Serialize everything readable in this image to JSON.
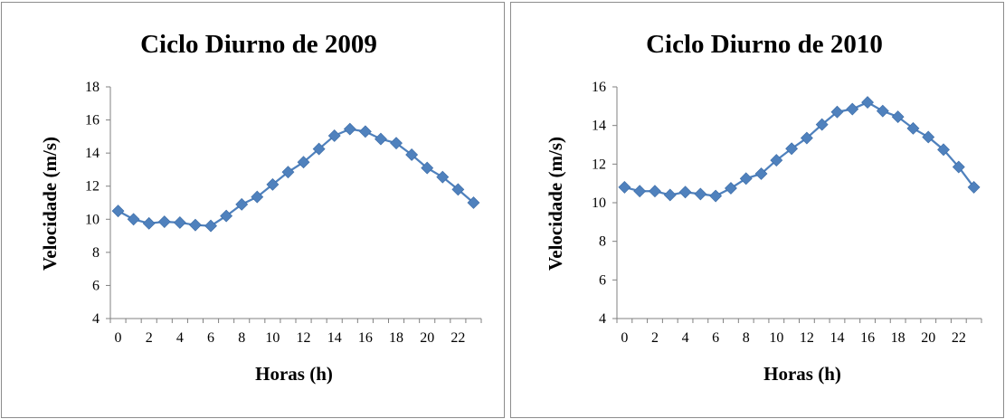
{
  "chart_data": [
    {
      "type": "line",
      "title": "Ciclo Diurno de 2009",
      "xlabel": "Horas (h)",
      "ylabel": "Velocidade (m/s)",
      "x": [
        0,
        1,
        2,
        3,
        4,
        5,
        6,
        7,
        8,
        9,
        10,
        11,
        12,
        13,
        14,
        15,
        16,
        17,
        18,
        19,
        20,
        21,
        22,
        23
      ],
      "x_tick_labels": [
        "0",
        "2",
        "4",
        "6",
        "8",
        "10",
        "12",
        "14",
        "16",
        "18",
        "20",
        "22"
      ],
      "xlim": [
        0,
        23
      ],
      "ylim": [
        4,
        18
      ],
      "y_ticks": [
        4,
        6,
        8,
        10,
        12,
        14,
        16,
        18
      ],
      "grid": false,
      "marker": "diamond",
      "color": "#4f81bd",
      "series": [
        {
          "values": [
            10.5,
            10.0,
            9.75,
            9.85,
            9.8,
            9.65,
            9.6,
            10.2,
            10.9,
            11.35,
            12.1,
            12.85,
            13.45,
            14.25,
            15.05,
            15.45,
            15.3,
            14.85,
            14.6,
            13.9,
            13.1,
            12.55,
            11.8,
            11.0
          ]
        }
      ]
    },
    {
      "type": "line",
      "title": "Ciclo Diurno de 2010",
      "xlabel": "Horas (h)",
      "ylabel": "Velocidade (m/s)",
      "x": [
        0,
        1,
        2,
        3,
        4,
        5,
        6,
        7,
        8,
        9,
        10,
        11,
        12,
        13,
        14,
        15,
        16,
        17,
        18,
        19,
        20,
        21,
        22,
        23
      ],
      "x_tick_labels": [
        "0",
        "2",
        "4",
        "6",
        "8",
        "10",
        "12",
        "14",
        "16",
        "18",
        "20",
        "22"
      ],
      "xlim": [
        0,
        23
      ],
      "ylim": [
        4,
        16
      ],
      "y_ticks": [
        4,
        6,
        8,
        10,
        12,
        14,
        16
      ],
      "grid": false,
      "marker": "diamond",
      "color": "#4f81bd",
      "series": [
        {
          "values": [
            10.8,
            10.6,
            10.6,
            10.4,
            10.55,
            10.45,
            10.35,
            10.75,
            11.25,
            11.5,
            12.2,
            12.8,
            13.35,
            14.05,
            14.7,
            14.85,
            15.2,
            14.75,
            14.45,
            13.85,
            13.4,
            12.75,
            11.85,
            10.8
          ]
        }
      ]
    }
  ]
}
